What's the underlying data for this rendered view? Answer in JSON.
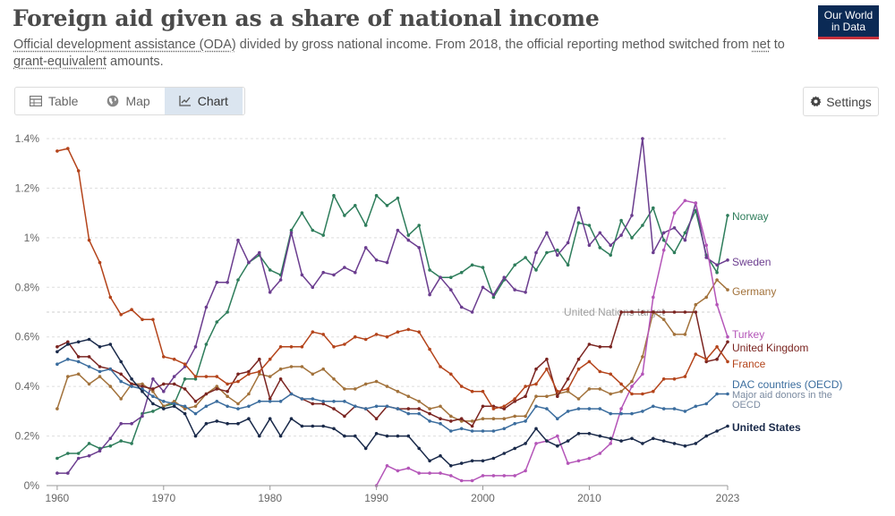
{
  "header": {
    "title": "Foreign aid given as a share of national income",
    "subtitle_a": "Official development assistance (ODA)",
    "subtitle_b": " divided by gross national income. From 2018, the official reporting method switched from ",
    "subtitle_c": "net",
    "subtitle_d": " to ",
    "subtitle_e": "grant-equivalent",
    "subtitle_f": " amounts.",
    "logo_line1": "Our World",
    "logo_line2": "in Data"
  },
  "tabs": [
    {
      "label": "Table",
      "icon": "table-icon"
    },
    {
      "label": "Map",
      "icon": "globe-icon"
    },
    {
      "label": "Chart",
      "icon": "line-chart-icon"
    }
  ],
  "settings_label": "Settings",
  "chart_data": {
    "type": "line",
    "title": "Foreign aid given as a share of national income",
    "ylabel": "",
    "xlabel": "",
    "xlim": [
      1959,
      2023
    ],
    "ylim": [
      0,
      1.4
    ],
    "y_ticks": [
      0,
      0.2,
      0.4,
      0.6,
      0.8,
      1.0,
      1.2,
      1.4
    ],
    "y_tick_labels": [
      "0%",
      "0.2%",
      "0.4%",
      "0.6%",
      "0.8%",
      "1%",
      "1.2%",
      "1.4%"
    ],
    "x_ticks": [
      1960,
      1970,
      1980,
      1990,
      2000,
      2010,
      2023
    ],
    "x_tick_labels": [
      "1960",
      "1970",
      "1980",
      "1990",
      "2000",
      "2010",
      "2023"
    ],
    "reference_line": {
      "label": "United Nations target",
      "value": 0.7
    },
    "series": [
      {
        "name": "Norway",
        "color": "#2e7d5b",
        "start": 1960,
        "values": [
          0.11,
          0.13,
          0.13,
          0.17,
          0.15,
          0.16,
          0.18,
          0.17,
          0.29,
          0.3,
          0.32,
          0.33,
          0.43,
          0.43,
          0.57,
          0.66,
          0.7,
          0.83,
          0.9,
          0.93,
          0.87,
          0.85,
          1.03,
          1.1,
          1.03,
          1.01,
          1.17,
          1.09,
          1.13,
          1.05,
          1.17,
          1.13,
          1.16,
          1.01,
          1.05,
          0.87,
          0.84,
          0.84,
          0.86,
          0.89,
          0.88,
          0.76,
          0.83,
          0.89,
          0.92,
          0.87,
          0.94,
          0.95,
          0.89,
          1.06,
          1.05,
          0.96,
          0.93,
          1.07,
          1.0,
          1.05,
          1.12,
          0.99,
          0.94,
          1.02,
          1.11,
          0.93,
          0.86,
          1.09
        ]
      },
      {
        "name": "Sweden",
        "color": "#6b3d8f",
        "start": 1960,
        "values": [
          0.05,
          0.05,
          0.11,
          0.12,
          0.14,
          0.19,
          0.25,
          0.25,
          0.28,
          0.43,
          0.38,
          0.44,
          0.48,
          0.56,
          0.72,
          0.82,
          0.82,
          0.99,
          0.9,
          0.94,
          0.78,
          0.83,
          1.02,
          0.85,
          0.8,
          0.86,
          0.85,
          0.88,
          0.86,
          0.96,
          0.91,
          0.9,
          1.03,
          0.99,
          0.96,
          0.77,
          0.84,
          0.79,
          0.72,
          0.7,
          0.8,
          0.77,
          0.84,
          0.79,
          0.78,
          0.94,
          1.02,
          0.93,
          0.98,
          1.12,
          0.97,
          1.02,
          0.97,
          1.01,
          1.09,
          1.4,
          0.94,
          1.02,
          1.04,
          0.99,
          1.14,
          0.92,
          0.89,
          0.91
        ]
      },
      {
        "name": "Germany",
        "color": "#a2723b",
        "start": 1960,
        "values": [
          0.31,
          0.44,
          0.45,
          0.41,
          0.44,
          0.4,
          0.35,
          0.41,
          0.41,
          0.38,
          0.32,
          0.34,
          0.31,
          0.32,
          0.37,
          0.4,
          0.36,
          0.33,
          0.37,
          0.45,
          0.44,
          0.47,
          0.48,
          0.48,
          0.45,
          0.47,
          0.43,
          0.39,
          0.39,
          0.41,
          0.42,
          0.4,
          0.38,
          0.36,
          0.34,
          0.31,
          0.32,
          0.28,
          0.26,
          0.26,
          0.27,
          0.27,
          0.27,
          0.28,
          0.28,
          0.36,
          0.36,
          0.37,
          0.38,
          0.35,
          0.39,
          0.39,
          0.37,
          0.38,
          0.42,
          0.52,
          0.7,
          0.67,
          0.61,
          0.61,
          0.73,
          0.76,
          0.83,
          0.79
        ]
      },
      {
        "name": "Turkey",
        "color": "#b455b8",
        "start": 1990,
        "values": [
          0.0,
          0.08,
          0.06,
          0.07,
          0.05,
          0.05,
          0.05,
          0.04,
          0.02,
          0.02,
          0.04,
          0.04,
          0.04,
          0.04,
          0.06,
          0.17,
          0.18,
          0.2,
          0.09,
          0.1,
          0.11,
          0.13,
          0.17,
          0.31,
          0.4,
          0.45,
          0.76,
          0.95,
          1.1,
          1.15,
          1.14,
          0.97,
          0.73,
          0.6
        ]
      },
      {
        "name": "United Kingdom",
        "color": "#7a2420",
        "start": 1960,
        "values": [
          0.56,
          0.58,
          0.52,
          0.52,
          0.48,
          0.47,
          0.45,
          0.41,
          0.4,
          0.39,
          0.41,
          0.41,
          0.39,
          0.34,
          0.37,
          0.39,
          0.38,
          0.45,
          0.46,
          0.51,
          0.35,
          0.43,
          0.37,
          0.35,
          0.33,
          0.33,
          0.31,
          0.28,
          0.32,
          0.31,
          0.27,
          0.32,
          0.31,
          0.31,
          0.31,
          0.29,
          0.27,
          0.26,
          0.27,
          0.24,
          0.32,
          0.32,
          0.31,
          0.34,
          0.36,
          0.47,
          0.51,
          0.36,
          0.43,
          0.51,
          0.57,
          0.56,
          0.56,
          0.7,
          0.7,
          0.7,
          0.7,
          0.7,
          0.7,
          0.7,
          0.7,
          0.5,
          0.51,
          0.58
        ]
      },
      {
        "name": "France",
        "color": "#b4441b",
        "start": 1960,
        "values": [
          1.35,
          1.36,
          1.27,
          0.99,
          0.9,
          0.76,
          0.69,
          0.71,
          0.67,
          0.67,
          0.52,
          0.51,
          0.49,
          0.44,
          0.44,
          0.44,
          0.41,
          0.42,
          0.45,
          0.46,
          0.51,
          0.56,
          0.56,
          0.56,
          0.62,
          0.61,
          0.56,
          0.57,
          0.6,
          0.59,
          0.61,
          0.6,
          0.62,
          0.63,
          0.62,
          0.55,
          0.48,
          0.45,
          0.4,
          0.38,
          0.38,
          0.31,
          0.32,
          0.35,
          0.4,
          0.41,
          0.47,
          0.38,
          0.39,
          0.47,
          0.5,
          0.46,
          0.45,
          0.41,
          0.37,
          0.37,
          0.38,
          0.43,
          0.43,
          0.44,
          0.53,
          0.51,
          0.56,
          0.5
        ]
      },
      {
        "name": "DAC countries (OECD)",
        "color": "#3b6d9e",
        "start": 1960,
        "values": [
          0.49,
          0.51,
          0.5,
          0.48,
          0.46,
          0.47,
          0.42,
          0.4,
          0.39,
          0.36,
          0.34,
          0.33,
          0.32,
          0.29,
          0.32,
          0.34,
          0.32,
          0.31,
          0.32,
          0.34,
          0.34,
          0.34,
          0.37,
          0.35,
          0.35,
          0.34,
          0.34,
          0.34,
          0.32,
          0.31,
          0.32,
          0.32,
          0.31,
          0.29,
          0.29,
          0.26,
          0.25,
          0.22,
          0.23,
          0.22,
          0.22,
          0.22,
          0.23,
          0.25,
          0.26,
          0.32,
          0.31,
          0.27,
          0.3,
          0.31,
          0.31,
          0.31,
          0.29,
          0.29,
          0.29,
          0.3,
          0.32,
          0.31,
          0.31,
          0.3,
          0.32,
          0.33,
          0.37,
          0.37
        ]
      },
      {
        "name": "United States",
        "color": "#1a2a4a",
        "start": 1960,
        "values": [
          0.54,
          0.57,
          0.58,
          0.59,
          0.56,
          0.57,
          0.5,
          0.43,
          0.38,
          0.33,
          0.31,
          0.32,
          0.29,
          0.2,
          0.25,
          0.26,
          0.25,
          0.25,
          0.27,
          0.2,
          0.27,
          0.2,
          0.27,
          0.24,
          0.24,
          0.24,
          0.23,
          0.2,
          0.2,
          0.15,
          0.21,
          0.2,
          0.2,
          0.2,
          0.15,
          0.1,
          0.12,
          0.08,
          0.09,
          0.1,
          0.1,
          0.11,
          0.13,
          0.15,
          0.17,
          0.23,
          0.18,
          0.16,
          0.18,
          0.21,
          0.21,
          0.2,
          0.19,
          0.18,
          0.19,
          0.17,
          0.19,
          0.18,
          0.17,
          0.16,
          0.17,
          0.2,
          0.22,
          0.24
        ]
      }
    ],
    "annotation_major_donors": {
      "label_line1": "Major aid donors in the",
      "label_line2": "OECD"
    },
    "legend_placement": "right"
  }
}
